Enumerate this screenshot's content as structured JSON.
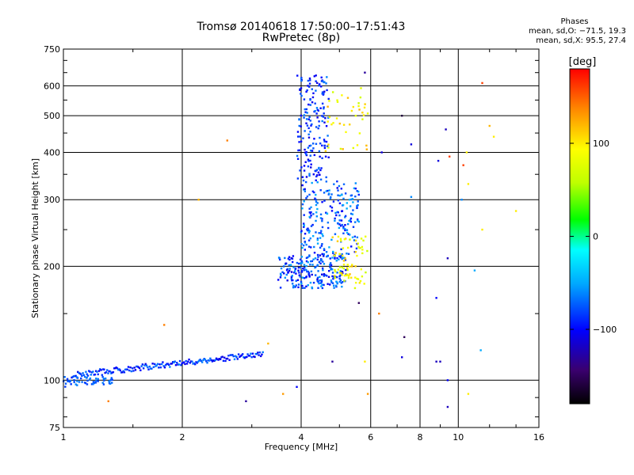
{
  "header": {
    "title_line1": "Tromsø 20140618 17:50:00–17:51:43",
    "title_line2": "RwPretec (8p)"
  },
  "phases": {
    "label": "Phases",
    "o_line": "mean, sd,O: −71.5, 19.3",
    "x_line": "mean, sd,X:  95.5, 27.4"
  },
  "colorbar": {
    "unit_label": "[deg]",
    "min": -180,
    "max": 180,
    "ticks": [
      {
        "value": 100,
        "label": "100"
      },
      {
        "value": 0,
        "label": "0"
      },
      {
        "value": -100,
        "label": "−100"
      }
    ]
  },
  "chart_data": {
    "type": "scatter",
    "title": "Tromsø 20140618 17:50:00–17:51:43",
    "subtitle": "RwPretec (8p)",
    "xlabel": "Frequency [MHz]",
    "ylabel": "Stationary phase Virtual Height [km]",
    "x_scale": "log",
    "y_scale": "log",
    "xlim": [
      1,
      16
    ],
    "ylim": [
      75,
      750
    ],
    "x_ticks": [
      1,
      2,
      4,
      6,
      8,
      10,
      16
    ],
    "x_tick_labels": [
      "1",
      "2",
      "4",
      "6",
      "8",
      "10",
      "16"
    ],
    "y_ticks": [
      75,
      100,
      200,
      300,
      400,
      500,
      600,
      750
    ],
    "y_tick_labels": [
      "75",
      "100",
      "200",
      "300",
      "400",
      "500",
      "600",
      "750"
    ],
    "grid": true,
    "color_variable": "phase [deg]",
    "traces": [
      {
        "x_range": [
          1.0,
          1.35
        ],
        "h_range": [
          98,
          101
        ],
        "phase_range": [
          -85,
          -60
        ],
        "count": 55
      },
      {
        "x_range": [
          1.05,
          3.2
        ],
        "h_range": [
          103,
          117
        ],
        "phase_range": [
          -110,
          -60
        ],
        "count": 190
      },
      {
        "x_range": [
          3.5,
          5.2
        ],
        "h_range": [
          175,
          215
        ],
        "phase_range": [
          -110,
          -50
        ],
        "count": 220
      },
      {
        "x_range": [
          4.0,
          5.6
        ],
        "h_range": [
          215,
          340
        ],
        "phase_range": [
          -105,
          -45
        ],
        "count": 210
      },
      {
        "x_range": [
          3.9,
          4.7
        ],
        "h_range": [
          340,
          640
        ],
        "phase_range": [
          -110,
          -60
        ],
        "count": 170
      },
      {
        "x_range": [
          4.8,
          5.9
        ],
        "h_range": [
          175,
          240
        ],
        "phase_range": [
          60,
          120
        ],
        "count": 70
      },
      {
        "x_range": [
          4.6,
          5.9
        ],
        "h_range": [
          400,
          600
        ],
        "phase_range": [
          60,
          130
        ],
        "count": 40
      }
    ],
    "scattered_points": [
      {
        "x": 11.5,
        "y": 610,
        "phase": 160
      },
      {
        "x": 2.6,
        "y": 430,
        "phase": 140
      },
      {
        "x": 6.3,
        "y": 150,
        "phase": 140
      },
      {
        "x": 1.8,
        "y": 140,
        "phase": 140
      },
      {
        "x": 1.3,
        "y": 88,
        "phase": 140
      },
      {
        "x": 5.8,
        "y": 650,
        "phase": -130
      },
      {
        "x": 6.4,
        "y": 400,
        "phase": -110
      },
      {
        "x": 7.2,
        "y": 500,
        "phase": -160
      },
      {
        "x": 7.6,
        "y": 420,
        "phase": -110
      },
      {
        "x": 8.9,
        "y": 380,
        "phase": -110
      },
      {
        "x": 9.3,
        "y": 460,
        "phase": -120
      },
      {
        "x": 9.5,
        "y": 390,
        "phase": 160
      },
      {
        "x": 10.3,
        "y": 370,
        "phase": 160
      },
      {
        "x": 10.5,
        "y": 400,
        "phase": 100
      },
      {
        "x": 10.6,
        "y": 330,
        "phase": 100
      },
      {
        "x": 12.3,
        "y": 440,
        "phase": 100
      },
      {
        "x": 12.0,
        "y": 470,
        "phase": 120
      },
      {
        "x": 11.5,
        "y": 250,
        "phase": 100
      },
      {
        "x": 14.0,
        "y": 280,
        "phase": 100
      },
      {
        "x": 9.4,
        "y": 210,
        "phase": -120
      },
      {
        "x": 11.0,
        "y": 195,
        "phase": -50
      },
      {
        "x": 8.8,
        "y": 165,
        "phase": -100
      },
      {
        "x": 7.3,
        "y": 130,
        "phase": -150
      },
      {
        "x": 9.0,
        "y": 112,
        "phase": -120
      },
      {
        "x": 9.4,
        "y": 100,
        "phase": -100
      },
      {
        "x": 9.4,
        "y": 85,
        "phase": -120
      },
      {
        "x": 10.6,
        "y": 92,
        "phase": 100
      },
      {
        "x": 11.4,
        "y": 120,
        "phase": -50
      },
      {
        "x": 5.8,
        "y": 112,
        "phase": 100
      },
      {
        "x": 4.8,
        "y": 112,
        "phase": -130
      },
      {
        "x": 5.6,
        "y": 160,
        "phase": -150
      },
      {
        "x": 7.2,
        "y": 115,
        "phase": -110
      },
      {
        "x": 8.8,
        "y": 112,
        "phase": -120
      },
      {
        "x": 3.9,
        "y": 96,
        "phase": -100
      },
      {
        "x": 3.6,
        "y": 92,
        "phase": 130
      },
      {
        "x": 2.9,
        "y": 88,
        "phase": -130
      },
      {
        "x": 2.2,
        "y": 300,
        "phase": 120
      },
      {
        "x": 3.3,
        "y": 125,
        "phase": 120
      },
      {
        "x": 5.9,
        "y": 92,
        "phase": 130
      },
      {
        "x": 10.2,
        "y": 300,
        "phase": -60
      },
      {
        "x": 7.6,
        "y": 305,
        "phase": -60
      }
    ]
  }
}
